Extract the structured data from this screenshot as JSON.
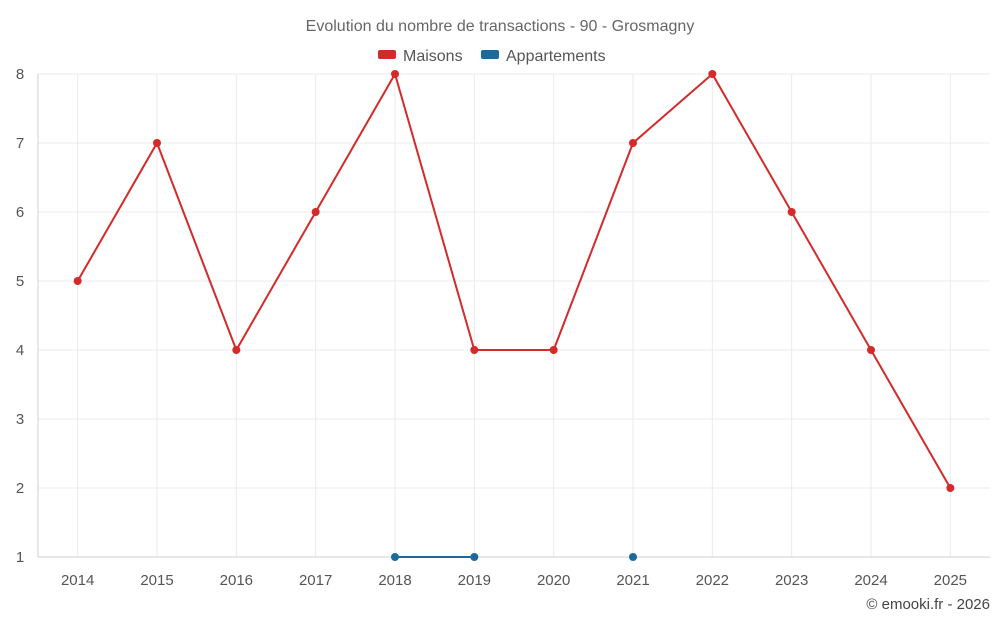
{
  "chart_data": {
    "type": "line",
    "title": "Evolution du nombre de transactions - 90 - Grosmagny",
    "categories": [
      "2014",
      "2015",
      "2016",
      "2017",
      "2018",
      "2019",
      "2020",
      "2021",
      "2022",
      "2023",
      "2024",
      "2025"
    ],
    "ylim": [
      1,
      8
    ],
    "yticks": [
      1,
      2,
      3,
      4,
      5,
      6,
      7,
      8
    ],
    "grid": true,
    "legend_position": "top-center",
    "series": [
      {
        "name": "Maisons",
        "color": "#d42a2a",
        "values": [
          5,
          7,
          4,
          6,
          8,
          4,
          4,
          7,
          8,
          6,
          4,
          2
        ]
      },
      {
        "name": "Appartements",
        "color": "#1a6a9e",
        "values": [
          null,
          null,
          null,
          null,
          1,
          1,
          null,
          1,
          null,
          null,
          null,
          null
        ]
      }
    ]
  },
  "credit": "© emooki.fr - 2026"
}
